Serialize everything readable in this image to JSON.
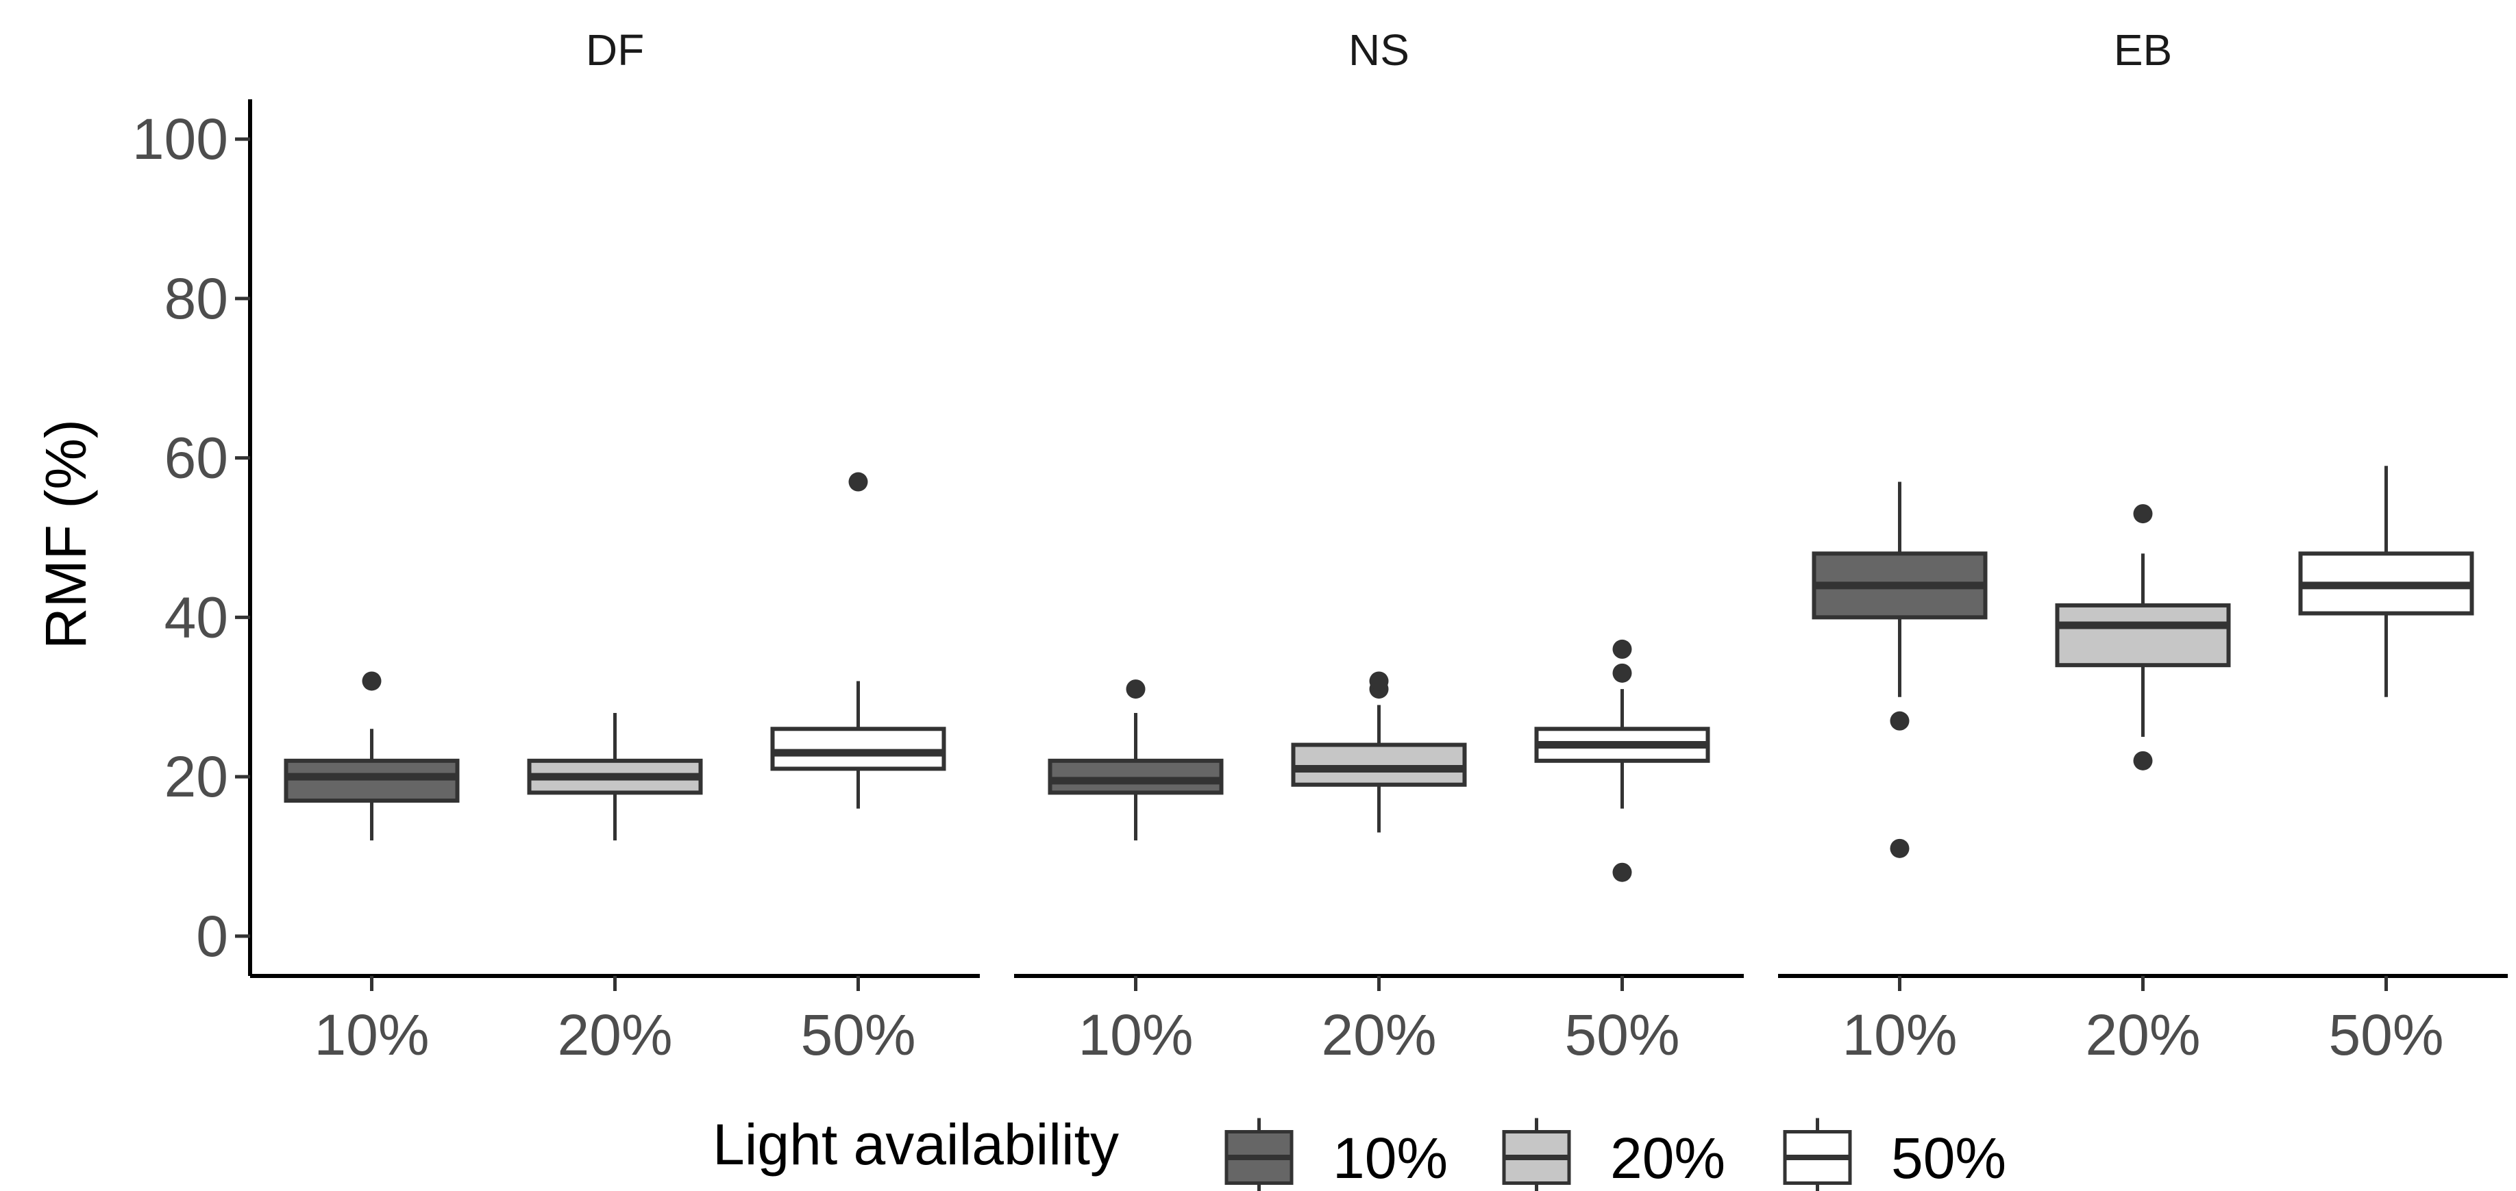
{
  "chart_data": {
    "type": "box",
    "ylabel": "RMF (%)",
    "xlabel": "",
    "ylim": [
      -5,
      105
    ],
    "yticks": [
      0,
      20,
      40,
      60,
      80,
      100
    ],
    "categories": [
      "10%",
      "20%",
      "50%"
    ],
    "colors": {
      "10%": "#666666",
      "20%": "#c6c6c6",
      "50%": "#ffffff"
    },
    "stroke_color": "#333333",
    "legend": {
      "title": "Light availability",
      "entries": [
        "10%",
        "20%",
        "50%"
      ],
      "position": "bottom"
    },
    "facets": [
      {
        "label": "DF",
        "boxes": [
          {
            "category": "10%",
            "whisker_low": 12,
            "q1": 17,
            "median": 20,
            "q3": 22,
            "whisker_high": 26,
            "outliers": [
              32
            ]
          },
          {
            "category": "20%",
            "whisker_low": 12,
            "q1": 18,
            "median": 20,
            "q3": 22,
            "whisker_high": 28,
            "outliers": []
          },
          {
            "category": "50%",
            "whisker_low": 16,
            "q1": 21,
            "median": 23,
            "q3": 26,
            "whisker_high": 32,
            "outliers": [
              57
            ]
          }
        ]
      },
      {
        "label": "NS",
        "boxes": [
          {
            "category": "10%",
            "whisker_low": 12,
            "q1": 18,
            "median": 19.5,
            "q3": 22,
            "whisker_high": 28,
            "outliers": [
              31
            ]
          },
          {
            "category": "20%",
            "whisker_low": 13,
            "q1": 19,
            "median": 21,
            "q3": 24,
            "whisker_high": 29,
            "outliers": [
              31,
              32
            ]
          },
          {
            "category": "50%",
            "whisker_low": 16,
            "q1": 22,
            "median": 24,
            "q3": 26,
            "whisker_high": 31,
            "outliers": [
              8,
              33,
              36
            ]
          }
        ]
      },
      {
        "label": "EB",
        "boxes": [
          {
            "category": "10%",
            "whisker_low": 30,
            "q1": 40,
            "median": 44,
            "q3": 48,
            "whisker_high": 57,
            "outliers": [
              11,
              27
            ]
          },
          {
            "category": "20%",
            "whisker_low": 25,
            "q1": 34,
            "median": 39,
            "q3": 41.5,
            "whisker_high": 48,
            "outliers": [
              22,
              53
            ]
          },
          {
            "category": "50%",
            "whisker_low": 30,
            "q1": 40.5,
            "median": 44,
            "q3": 48,
            "whisker_high": 59,
            "outliers": []
          }
        ]
      }
    ]
  }
}
